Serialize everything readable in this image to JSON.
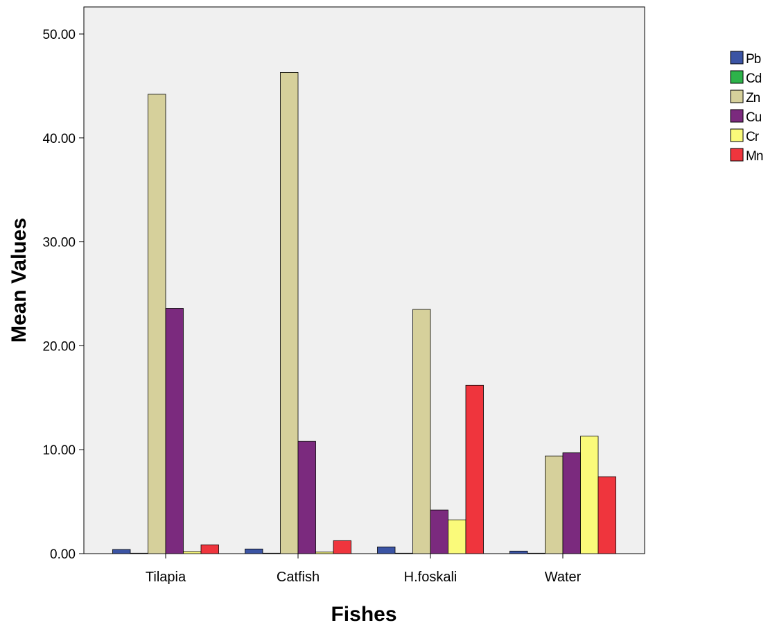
{
  "chart_data": {
    "type": "bar",
    "title": "",
    "xlabel": "Fishes",
    "ylabel": "Mean Values",
    "categories": [
      "Tilapia",
      "Catfish",
      "H.foskali",
      "Water"
    ],
    "ylim": [
      0,
      52
    ],
    "y_ticks": [
      0,
      10,
      20,
      30,
      40,
      50
    ],
    "y_tick_labels": [
      "0.00",
      "10.00",
      "20.00",
      "30.00",
      "40.00",
      "50.00"
    ],
    "grid": false,
    "legend_position": "right",
    "plot_background": "#f0f0f0",
    "series": [
      {
        "name": "Pb",
        "color": "#3b54a4",
        "values": [
          0.4,
          0.45,
          0.65,
          0.25
        ]
      },
      {
        "name": "Cd",
        "color": "#2db34a",
        "values": [
          0.05,
          0.05,
          0.05,
          0.05
        ]
      },
      {
        "name": "Zn",
        "color": "#d6d09b",
        "values": [
          44.2,
          46.3,
          23.5,
          9.4
        ]
      },
      {
        "name": "Cu",
        "color": "#7b2a7e",
        "values": [
          23.6,
          10.8,
          4.2,
          9.7
        ]
      },
      {
        "name": "Cr",
        "color": "#fafa7a",
        "values": [
          0.2,
          0.15,
          3.25,
          11.3
        ]
      },
      {
        "name": "Mn",
        "color": "#ef353d",
        "values": [
          0.85,
          1.25,
          16.2,
          7.4
        ]
      }
    ]
  }
}
